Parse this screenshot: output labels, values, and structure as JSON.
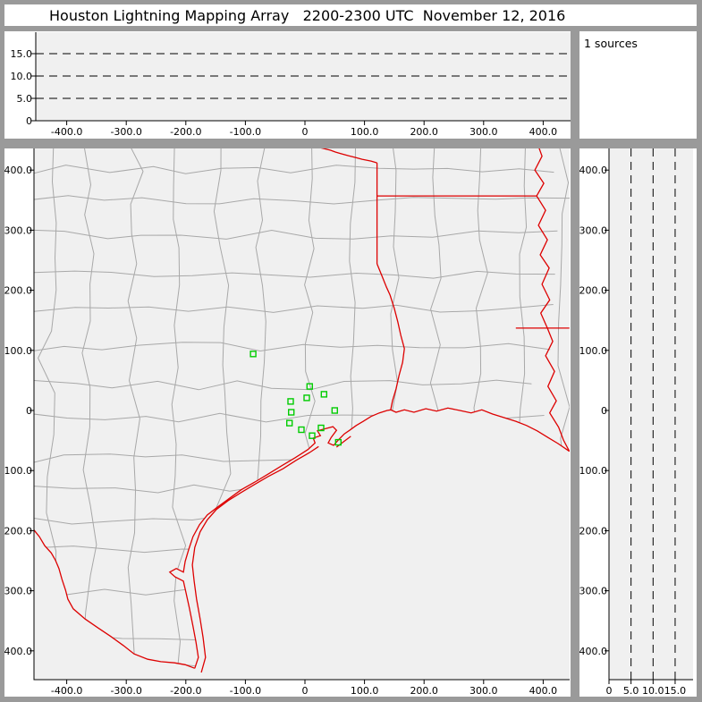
{
  "title": "Houston Lightning Mapping Array   2200-2300 UTC  November 12, 2016",
  "status_panel": {
    "sources_label": "1 sources"
  },
  "colors": {
    "frame": "#9a9a9a",
    "panel_bg": "#ffffff",
    "plot_bg": "#f0f0f0",
    "county_line": "#a8a8a8",
    "state_line": "#dd0000",
    "station_marker": "#00cc00",
    "axis": "#000000"
  },
  "chart_data": {
    "type": "scatter",
    "title": "Houston Lightning Mapping Array   2200-2300 UTC  November 12, 2016",
    "source_count": 1,
    "panels": [
      {
        "panel": "ew-altitude-cross-section",
        "type": "scatter",
        "x_axis": {
          "ticks": [
            -400,
            -300,
            -200,
            -100,
            0,
            100,
            200,
            300,
            400
          ],
          "labels": [
            "-400.0",
            "-300.0",
            "-200.0",
            "-100.0",
            "0",
            "100.0",
            "200.0",
            "300.0",
            "400.0"
          ],
          "range_km": [
            -455,
            445
          ]
        },
        "y_axis": {
          "ticks": [
            15,
            10,
            5,
            0
          ],
          "labels": [
            "15.0",
            "10.0",
            "5.0",
            "0"
          ],
          "range_km": [
            0,
            20
          ]
        },
        "dashed_altitude_lines_km": [
          5,
          10,
          15
        ],
        "points": []
      },
      {
        "panel": "plan-view-map",
        "type": "map-scatter",
        "x_axis": {
          "ticks": [
            -400,
            -300,
            -200,
            -100,
            0,
            100,
            200,
            300,
            400
          ],
          "labels": [
            "-400.0",
            "-300.0",
            "-200.0",
            "-100.0",
            "0",
            "100.0",
            "200.0",
            "300.0",
            "400.0"
          ],
          "range_km": [
            -455,
            445
          ]
        },
        "y_axis": {
          "ticks": [
            400,
            300,
            200,
            100,
            0,
            -100,
            -200,
            -300,
            -400
          ],
          "labels": [
            "400.0",
            "300.0",
            "200.0",
            "100.0",
            "0",
            "-100.0",
            "-200.0",
            "-300.0",
            "-400.0"
          ],
          "range_km": [
            -448,
            436
          ]
        },
        "station_markers_km": [
          [
            -87,
            94
          ],
          [
            8,
            40
          ],
          [
            3,
            21
          ],
          [
            32,
            27
          ],
          [
            -24,
            15
          ],
          [
            50,
            0
          ],
          [
            -23,
            -3
          ],
          [
            -26,
            -21
          ],
          [
            27,
            -29
          ],
          [
            -6,
            -32
          ],
          [
            12,
            -42
          ],
          [
            56,
            -53
          ]
        ],
        "points": []
      },
      {
        "panel": "ns-altitude-cross-section",
        "type": "scatter",
        "x_axis": {
          "ticks": [
            0,
            5,
            10,
            15
          ],
          "labels": [
            "0",
            "5.0",
            "10.0",
            "15.0"
          ],
          "range_km": [
            0,
            19
          ]
        },
        "y_axis": {
          "ticks": [
            400,
            300,
            200,
            100,
            0,
            -100,
            -200,
            -300,
            -400
          ],
          "labels": [
            "400.0",
            "300.0",
            "200.0",
            "100.0",
            "0",
            "-100.0",
            "-200.0",
            "-300.0",
            "-400.0"
          ],
          "range_km": [
            -448,
            436
          ]
        },
        "dashed_altitude_lines_km": [
          5,
          10,
          15
        ],
        "points": []
      }
    ],
    "map_geometry_km": {
      "red_river": [
        [
          10,
          443
        ],
        [
          13,
          440
        ],
        [
          22,
          438
        ],
        [
          31,
          436
        ],
        [
          43,
          433
        ],
        [
          51,
          430
        ],
        [
          62,
          427
        ],
        [
          73,
          424
        ],
        [
          85,
          421
        ],
        [
          96,
          418
        ],
        [
          111,
          415
        ],
        [
          121,
          412
        ]
      ],
      "ok_ar_vertical": [
        [
          121,
          412
        ],
        [
          121,
          244
        ]
      ],
      "ok_ar_horizontal": [
        [
          121,
          357
        ],
        [
          389,
          357
        ]
      ],
      "tx_ar_la_west": [
        [
          121,
          244
        ],
        [
          130,
          222
        ],
        [
          137,
          205
        ],
        [
          143,
          192
        ],
        [
          150,
          170
        ],
        [
          156,
          147
        ],
        [
          161,
          125
        ],
        [
          167,
          103
        ],
        [
          164,
          80
        ],
        [
          158,
          58
        ],
        [
          153,
          36
        ],
        [
          147,
          16
        ],
        [
          144,
          1
        ]
      ],
      "ar_la_horizontal": [
        [
          354,
          137
        ],
        [
          444,
          137
        ]
      ],
      "mississippi_river": [
        [
          389,
          448
        ],
        [
          398,
          423
        ],
        [
          386,
          400
        ],
        [
          401,
          378
        ],
        [
          389,
          357
        ],
        [
          404,
          333
        ],
        [
          392,
          308
        ],
        [
          407,
          284
        ],
        [
          395,
          259
        ],
        [
          410,
          237
        ],
        [
          398,
          210
        ],
        [
          411,
          184
        ],
        [
          396,
          162
        ],
        [
          407,
          137
        ],
        [
          416,
          115
        ],
        [
          404,
          91
        ],
        [
          419,
          65
        ],
        [
          408,
          40
        ],
        [
          422,
          16
        ],
        [
          411,
          -4
        ],
        [
          426,
          -28
        ],
        [
          434,
          -49
        ],
        [
          444,
          -68
        ]
      ],
      "rio_grande": [
        [
          -455,
          -199
        ],
        [
          -446,
          -210
        ],
        [
          -437,
          -225
        ],
        [
          -426,
          -237
        ],
        [
          -419,
          -249
        ],
        [
          -413,
          -263
        ],
        [
          -408,
          -281
        ],
        [
          -402,
          -299
        ],
        [
          -398,
          -314
        ],
        [
          -389,
          -330
        ],
        [
          -369,
          -347
        ],
        [
          -347,
          -362
        ],
        [
          -326,
          -376
        ],
        [
          -305,
          -391
        ],
        [
          -287,
          -405
        ],
        [
          -264,
          -414
        ],
        [
          -242,
          -418
        ],
        [
          -219,
          -420
        ],
        [
          -201,
          -423
        ],
        [
          -185,
          -429
        ]
      ],
      "gulf_coast": [
        [
          -185,
          -429
        ],
        [
          -179,
          -411
        ],
        [
          -183,
          -385
        ],
        [
          -188,
          -359
        ],
        [
          -194,
          -329
        ],
        [
          -200,
          -302
        ],
        [
          -204,
          -284
        ],
        [
          -218,
          -277
        ],
        [
          -227,
          -269
        ],
        [
          -216,
          -263
        ],
        [
          -204,
          -269
        ],
        [
          -201,
          -251
        ],
        [
          -195,
          -231
        ],
        [
          -188,
          -210
        ],
        [
          -177,
          -190
        ],
        [
          -164,
          -174
        ],
        [
          -147,
          -161
        ],
        [
          -128,
          -147
        ],
        [
          -107,
          -132
        ],
        [
          -84,
          -119
        ],
        [
          -62,
          -106
        ],
        [
          -39,
          -92
        ],
        [
          -17,
          -79
        ],
        [
          5,
          -65
        ],
        [
          17,
          -54
        ],
        [
          14,
          -46
        ],
        [
          26,
          -42
        ],
        [
          21,
          -34
        ],
        [
          35,
          -30
        ],
        [
          47,
          -27
        ],
        [
          53,
          -33
        ],
        [
          44,
          -45
        ],
        [
          39,
          -54
        ],
        [
          48,
          -58
        ],
        [
          57,
          -48
        ],
        [
          66,
          -39
        ],
        [
          75,
          -33
        ],
        [
          86,
          -25
        ],
        [
          98,
          -18
        ],
        [
          111,
          -10
        ],
        [
          125,
          -4
        ],
        [
          138,
          0
        ],
        [
          144,
          1
        ],
        [
          153,
          -3
        ],
        [
          167,
          1
        ],
        [
          183,
          -3
        ],
        [
          203,
          3
        ],
        [
          221,
          -1
        ],
        [
          240,
          4
        ],
        [
          260,
          0
        ],
        [
          279,
          -4
        ],
        [
          297,
          1
        ],
        [
          315,
          -6
        ],
        [
          335,
          -12
        ],
        [
          354,
          -18
        ],
        [
          372,
          -25
        ],
        [
          390,
          -34
        ],
        [
          408,
          -45
        ],
        [
          425,
          -55
        ],
        [
          444,
          -68
        ]
      ],
      "barrier_island": [
        [
          -174,
          -436
        ],
        [
          -167,
          -411
        ],
        [
          -171,
          -378
        ],
        [
          -176,
          -347
        ],
        [
          -182,
          -314
        ],
        [
          -186,
          -284
        ],
        [
          -189,
          -257
        ],
        [
          -185,
          -228
        ],
        [
          -176,
          -202
        ],
        [
          -164,
          -182
        ],
        [
          -149,
          -165
        ],
        [
          -129,
          -150
        ],
        [
          -108,
          -137
        ],
        [
          -86,
          -124
        ],
        [
          -62,
          -110
        ],
        [
          -37,
          -97
        ],
        [
          -15,
          -83
        ],
        [
          8,
          -70
        ],
        [
          23,
          -60
        ]
      ],
      "galveston_island": [
        [
          53,
          -61
        ],
        [
          65,
          -52
        ],
        [
          77,
          -43
        ]
      ],
      "blank_region_close": [
        [
          460,
          -68
        ],
        [
          460,
          -460
        ],
        [
          -470,
          -460
        ],
        [
          -470,
          -199
        ]
      ]
    }
  }
}
